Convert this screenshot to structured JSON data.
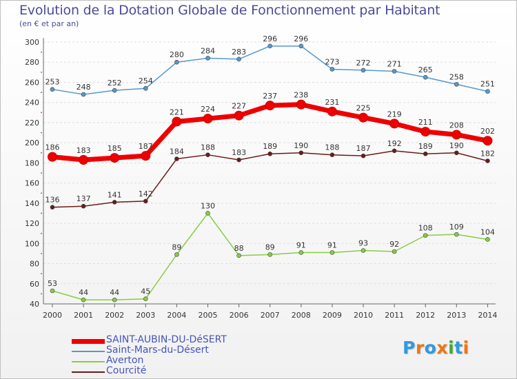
{
  "title": "Evolution de la Dotation Globale de Fonctionnement par Habitant",
  "subtitle": "(en € et par an)",
  "chart_data": {
    "type": "line",
    "title": "Evolution de la Dotation Globale de Fonctionnement par Habitant",
    "subtitle": "(en € et par an)",
    "xlabel": "",
    "ylabel": "",
    "ylim": [
      40,
      300
    ],
    "yticks": [
      40,
      60,
      80,
      100,
      120,
      140,
      160,
      180,
      200,
      220,
      240,
      260,
      280,
      300
    ],
    "grid": true,
    "legend_position": "bottom-left",
    "categories": [
      "2000",
      "2001",
      "2002",
      "2003",
      "2004",
      "2005",
      "2006",
      "2007",
      "2008",
      "2009",
      "2010",
      "2011",
      "2012",
      "2013",
      "2014"
    ],
    "series": [
      {
        "name": "Saint-Mars-du-Désert",
        "color": "#5599cc",
        "values": [
          253,
          248,
          252,
          254,
          280,
          284,
          283,
          296,
          296,
          273,
          272,
          271,
          265,
          258,
          251
        ]
      },
      {
        "name": "Courcité",
        "color": "#6b1a1a",
        "values": [
          136,
          137,
          141,
          142,
          184,
          188,
          183,
          189,
          190,
          188,
          187,
          192,
          189,
          190,
          182
        ]
      },
      {
        "name": "Averton",
        "color": "#88cc44",
        "values": [
          53,
          44,
          44,
          45,
          89,
          130,
          88,
          89,
          91,
          91,
          93,
          92,
          108,
          109,
          104
        ]
      },
      {
        "name": "SAINT-AUBIN-DU-DéSERT",
        "color": "#ee0000",
        "values": [
          186,
          183,
          185,
          187,
          221,
          224,
          227,
          237,
          238,
          231,
          225,
          219,
          211,
          208,
          202
        ]
      }
    ]
  },
  "legend": [
    {
      "label": "SAINT-AUBIN-DU-DéSERT",
      "color": "#ee0000"
    },
    {
      "label": "Saint-Mars-du-Désert",
      "color": "#5599cc"
    },
    {
      "label": "Averton",
      "color": "#88cc44"
    },
    {
      "label": "Courcité",
      "color": "#6b1a1a"
    }
  ],
  "logo": {
    "text": "Proxiti",
    "letters": [
      "P",
      "r",
      "o",
      "x",
      "i",
      "t",
      "i"
    ],
    "colors": [
      "#3399dd",
      "#ee7711",
      "#3399dd",
      "#ee7711",
      "#44aa33",
      "#3399dd",
      "#ee7711"
    ]
  }
}
